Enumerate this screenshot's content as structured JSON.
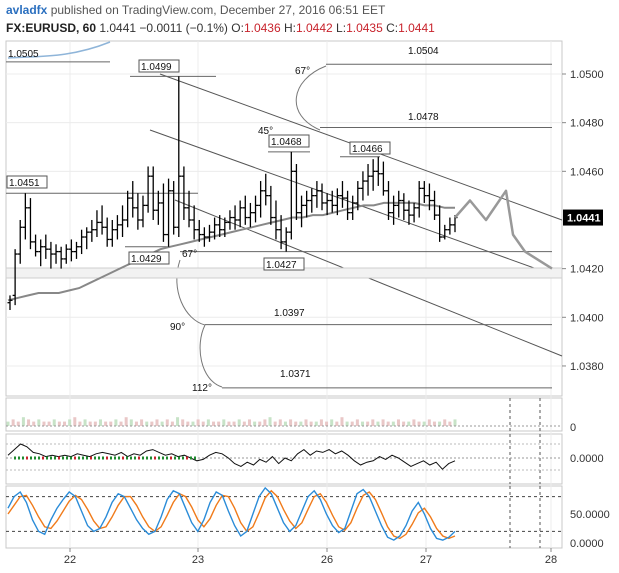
{
  "header": {
    "author": "avladfx",
    "published_text": "published on TradingView.com, December 27, 2016 06:51 EET",
    "symbol": "FX:EURUSD, 60",
    "last": "1.0441",
    "change": "−0.0011 (−0.1%)",
    "open_label": "O:",
    "open": "1.0436",
    "high_label": "H:",
    "high": "1.0442",
    "low_label": "L:",
    "low": "1.0435",
    "close_label": "C:",
    "close": "1.0441"
  },
  "colors": {
    "candles": "#000000",
    "bollinger_mid": "#888888",
    "projection": "#999999",
    "stoch_k": "#2b8cd8",
    "stoch_d": "#f07b1b",
    "channel": "#555555",
    "price_tag_bg": "#000000"
  },
  "chart_data": [
    {
      "type": "line",
      "panel": "price",
      "yaxis": {
        "ticks": [
          "1.0500",
          "1.0480",
          "1.0460",
          "1.0420",
          "1.0400",
          "1.0380"
        ],
        "ylim": [
          1.0366,
          1.0508
        ]
      },
      "xaxis": {
        "ticks": [
          "22",
          "23",
          "26",
          "27",
          "28"
        ]
      },
      "current_price_tag": "1.0441",
      "ohlc_bars": [
        [
          1.0406,
          1.0409,
          1.0403,
          1.0407
        ],
        [
          1.0409,
          1.0428,
          1.0405,
          1.0426
        ],
        [
          1.0426,
          1.044,
          1.0422,
          1.0437
        ],
        [
          1.0437,
          1.0451,
          1.0432,
          1.0445
        ],
        [
          1.0445,
          1.0449,
          1.0428,
          1.0431
        ],
        [
          1.0431,
          1.0434,
          1.0425,
          1.0427
        ],
        [
          1.0427,
          1.0432,
          1.0421,
          1.0429
        ],
        [
          1.0429,
          1.0434,
          1.0424,
          1.0428
        ],
        [
          1.0428,
          1.0431,
          1.042,
          1.0426
        ],
        [
          1.0426,
          1.043,
          1.0422,
          1.0427
        ],
        [
          1.0427,
          1.0429,
          1.042,
          1.0424
        ],
        [
          1.0424,
          1.043,
          1.0422,
          1.0428
        ],
        [
          1.0428,
          1.0432,
          1.0423,
          1.0427
        ],
        [
          1.0427,
          1.0431,
          1.0424,
          1.0429
        ],
        [
          1.0429,
          1.0436,
          1.0426,
          1.0433
        ],
        [
          1.0433,
          1.0437,
          1.0428,
          1.0435
        ],
        [
          1.0435,
          1.044,
          1.0431,
          1.0436
        ],
        [
          1.0436,
          1.0444,
          1.0433,
          1.0439
        ],
        [
          1.0439,
          1.0446,
          1.0434,
          1.0437
        ],
        [
          1.0437,
          1.0441,
          1.0429,
          1.0432
        ],
        [
          1.0432,
          1.044,
          1.0429,
          1.0436
        ],
        [
          1.0436,
          1.0442,
          1.0432,
          1.0438
        ],
        [
          1.0438,
          1.0446,
          1.0433,
          1.044
        ],
        [
          1.044,
          1.0452,
          1.0437,
          1.0449
        ],
        [
          1.0449,
          1.0456,
          1.0441,
          1.0445
        ],
        [
          1.0445,
          1.0451,
          1.0436,
          1.044
        ],
        [
          1.044,
          1.045,
          1.0437,
          1.0446
        ],
        [
          1.0446,
          1.0462,
          1.0443,
          1.0458
        ],
        [
          1.0458,
          1.0462,
          1.044,
          1.0444
        ],
        [
          1.0444,
          1.0452,
          1.0438,
          1.0447
        ],
        [
          1.0447,
          1.0455,
          1.0431,
          1.0434
        ],
        [
          1.0434,
          1.0457,
          1.0429,
          1.0452
        ],
        [
          1.0452,
          1.0456,
          1.0434,
          1.0437
        ],
        [
          1.0437,
          1.0499,
          1.0433,
          1.0458
        ],
        [
          1.0458,
          1.0462,
          1.044,
          1.0445
        ],
        [
          1.0445,
          1.0452,
          1.0437,
          1.044
        ],
        [
          1.044,
          1.0446,
          1.0432,
          1.0436
        ],
        [
          1.0436,
          1.044,
          1.0431,
          1.0434
        ],
        [
          1.0434,
          1.0437,
          1.0429,
          1.0433
        ],
        [
          1.0433,
          1.0438,
          1.0431,
          1.0435
        ],
        [
          1.0435,
          1.0441,
          1.0432,
          1.0438
        ],
        [
          1.0438,
          1.0442,
          1.0433,
          1.0436
        ],
        [
          1.0436,
          1.0441,
          1.0433,
          1.0439
        ],
        [
          1.0439,
          1.0444,
          1.0436,
          1.0441
        ],
        [
          1.0441,
          1.0446,
          1.0436,
          1.044
        ],
        [
          1.044,
          1.0448,
          1.0437,
          1.0445
        ],
        [
          1.0445,
          1.045,
          1.0438,
          1.0441
        ],
        [
          1.0441,
          1.0447,
          1.0437,
          1.0443
        ],
        [
          1.0443,
          1.045,
          1.0439,
          1.0446
        ],
        [
          1.0446,
          1.0456,
          1.0441,
          1.0452
        ],
        [
          1.0452,
          1.0459,
          1.0446,
          1.045
        ],
        [
          1.045,
          1.0454,
          1.0438,
          1.0441
        ],
        [
          1.0441,
          1.0448,
          1.0432,
          1.0436
        ],
        [
          1.0436,
          1.0442,
          1.0428,
          1.0431
        ],
        [
          1.0431,
          1.0437,
          1.0427,
          1.0435
        ],
        [
          1.0435,
          1.0468,
          1.0432,
          1.046
        ],
        [
          1.046,
          1.0463,
          1.044,
          1.0443
        ],
        [
          1.0443,
          1.045,
          1.0437,
          1.0446
        ],
        [
          1.0446,
          1.0452,
          1.0441,
          1.0448
        ],
        [
          1.0448,
          1.0453,
          1.0443,
          1.045
        ],
        [
          1.045,
          1.0456,
          1.0445,
          1.0452
        ],
        [
          1.0452,
          1.0455,
          1.0444,
          1.0447
        ],
        [
          1.0447,
          1.0451,
          1.0442,
          1.0448
        ],
        [
          1.0448,
          1.0452,
          1.0443,
          1.0446
        ],
        [
          1.0446,
          1.0453,
          1.0442,
          1.045
        ],
        [
          1.045,
          1.0456,
          1.0445,
          1.0449
        ],
        [
          1.0449,
          1.0452,
          1.044,
          1.0443
        ],
        [
          1.0443,
          1.045,
          1.044,
          1.0447
        ],
        [
          1.0447,
          1.0456,
          1.0444,
          1.0453
        ],
        [
          1.0453,
          1.046,
          1.0448,
          1.0456
        ],
        [
          1.0456,
          1.0463,
          1.045,
          1.0458
        ],
        [
          1.0458,
          1.0465,
          1.0452,
          1.046
        ],
        [
          1.046,
          1.0466,
          1.0454,
          1.0459
        ],
        [
          1.0459,
          1.0464,
          1.045,
          1.0452
        ],
        [
          1.0452,
          1.0456,
          1.044,
          1.0443
        ],
        [
          1.0443,
          1.045,
          1.0438,
          1.0446
        ],
        [
          1.0446,
          1.0452,
          1.0441,
          1.0448
        ],
        [
          1.0448,
          1.0451,
          1.044,
          1.0444
        ],
        [
          1.0444,
          1.0448,
          1.0438,
          1.0442
        ],
        [
          1.0442,
          1.0447,
          1.0439,
          1.0445
        ],
        [
          1.0445,
          1.0456,
          1.0441,
          1.0453
        ],
        [
          1.0453,
          1.0456,
          1.0447,
          1.045
        ],
        [
          1.045,
          1.0455,
          1.0444,
          1.0448
        ],
        [
          1.0448,
          1.0452,
          1.044,
          1.0442
        ],
        [
          1.0442,
          1.0446,
          1.0431,
          1.0433
        ],
        [
          1.0433,
          1.0438,
          1.0432,
          1.0436
        ],
        [
          1.0436,
          1.0441,
          1.0434,
          1.0438
        ],
        [
          1.0438,
          1.0442,
          1.0435,
          1.0441
        ]
      ],
      "bollinger_mid": [
        1.0407,
        1.0408,
        1.0409,
        1.041,
        1.041,
        1.041,
        1.0411,
        1.0412,
        1.0414,
        1.0416,
        1.0418,
        1.042,
        1.0422,
        1.0424,
        1.0426,
        1.0428,
        1.0429,
        1.043,
        1.0431,
        1.0432,
        1.0433,
        1.0434,
        1.0435,
        1.0436,
        1.0437,
        1.0438,
        1.0439,
        1.044,
        1.0441,
        1.0441,
        1.0442,
        1.0442,
        1.0443,
        1.0444,
        1.0445,
        1.0446,
        1.0446,
        1.0447,
        1.0447,
        1.0447,
        1.0447,
        1.0446,
        1.0446,
        1.0445,
        1.0445
      ],
      "levels": [
        {
          "label": "1.0505",
          "value": 1.0505
        },
        {
          "label": "1.0504",
          "value": 1.0504
        },
        {
          "label": "1.0499",
          "value": 1.0499
        },
        {
          "label": "1.0478",
          "value": 1.0478
        },
        {
          "label": "1.0468",
          "value": 1.0468
        },
        {
          "label": "1.0466",
          "value": 1.0466
        },
        {
          "label": "1.0451",
          "value": 1.0451
        },
        {
          "label": "1.0429",
          "value": 1.0429
        },
        {
          "label": "1.0427",
          "value": 1.0427
        },
        {
          "label": "1.0397",
          "value": 1.0397
        },
        {
          "label": "1.0371",
          "value": 1.0371
        }
      ],
      "angles": [
        "67°",
        "45°",
        "67°",
        "90°",
        "112°"
      ],
      "projection": [
        1.0441,
        1.0448,
        1.044,
        1.0452,
        1.0434,
        1.0427,
        1.042
      ]
    },
    {
      "type": "bar",
      "panel": "volume",
      "yaxis": {
        "ticks": [
          "0"
        ]
      },
      "values": [
        2,
        3,
        2,
        4,
        3,
        2,
        3,
        2,
        2,
        3,
        2,
        2,
        3,
        4,
        2,
        3,
        2,
        2,
        3,
        2,
        2,
        3,
        2,
        4,
        3,
        2,
        3,
        2,
        2,
        3,
        2,
        3,
        2,
        4,
        3,
        2,
        2,
        3,
        2,
        3,
        2,
        2,
        3,
        2,
        2,
        3,
        2,
        3,
        2,
        2,
        3,
        4,
        2,
        3,
        2,
        3,
        2,
        2,
        3,
        2,
        2,
        3,
        2,
        3,
        2,
        4,
        2,
        2,
        3,
        2,
        2,
        3,
        2,
        3,
        2,
        2,
        3,
        2,
        2,
        3,
        2,
        2,
        3,
        2,
        2,
        3,
        2,
        3
      ]
    },
    {
      "type": "line",
      "panel": "momentum",
      "yaxis": {
        "ticks": [
          "0.0000"
        ]
      },
      "values": [
        0.2,
        0.6,
        1.0,
        0.8,
        0.4,
        0.3,
        0.1,
        0.2,
        0.1,
        0.2,
        0.1,
        0.3,
        0.2,
        0.1,
        0.3,
        0.4,
        0.3,
        0.2,
        0.4,
        0.1,
        0.3,
        0.2,
        0.5,
        0.6,
        0.4,
        0.2,
        0.3,
        0.1,
        0.2,
        0.0,
        -0.2,
        -0.1,
        0.2,
        0.4,
        0.3,
        0.0,
        -0.4,
        -0.6,
        -0.3,
        -0.5,
        -0.1,
        -0.3,
        0.1,
        -0.4,
        0.0,
        -0.2,
        0.3,
        0.6,
        0.2,
        0.5,
        0.4,
        0.6,
        0.3,
        0.5,
        0.2,
        -0.2,
        -0.5,
        -0.3,
        -0.2,
        0.1,
        -0.1,
        0.2,
        0.0,
        -0.3,
        -0.6,
        -0.4,
        -0.2,
        -0.5,
        -0.3,
        -0.8,
        -0.4,
        -0.2
      ]
    },
    {
      "type": "line",
      "panel": "stochastic",
      "yaxis": {
        "ticks": [
          "50.0000",
          "0.0000"
        ]
      },
      "series": [
        {
          "values": [
            60,
            80,
            88,
            70,
            40,
            20,
            15,
            40,
            60,
            75,
            88,
            80,
            55,
            30,
            20,
            25,
            45,
            70,
            85,
            80,
            60,
            40,
            25,
            15,
            20,
            45,
            75,
            90,
            85,
            60,
            35,
            20,
            40,
            70,
            88,
            82,
            55,
            30,
            12,
            20,
            50,
            80,
            95,
            85,
            60,
            35,
            20,
            30,
            55,
            80,
            90,
            75,
            50,
            30,
            18,
            25,
            55,
            85,
            92,
            80,
            55,
            30,
            10,
            5,
            12,
            30,
            55,
            70,
            50,
            25,
            8,
            5,
            10,
            20
          ]
        },
        {
          "values": [
            50,
            65,
            80,
            82,
            65,
            45,
            28,
            25,
            38,
            55,
            72,
            82,
            75,
            58,
            38,
            25,
            28,
            45,
            65,
            80,
            80,
            65,
            45,
            28,
            20,
            28,
            48,
            70,
            85,
            80,
            62,
            40,
            28,
            42,
            65,
            82,
            80,
            60,
            35,
            20,
            28,
            52,
            78,
            90,
            80,
            58,
            38,
            25,
            35,
            58,
            80,
            85,
            70,
            48,
            28,
            22,
            35,
            60,
            82,
            88,
            75,
            52,
            28,
            12,
            8,
            15,
            32,
            52,
            60,
            45,
            25,
            12,
            8,
            12
          ]
        }
      ]
    }
  ]
}
